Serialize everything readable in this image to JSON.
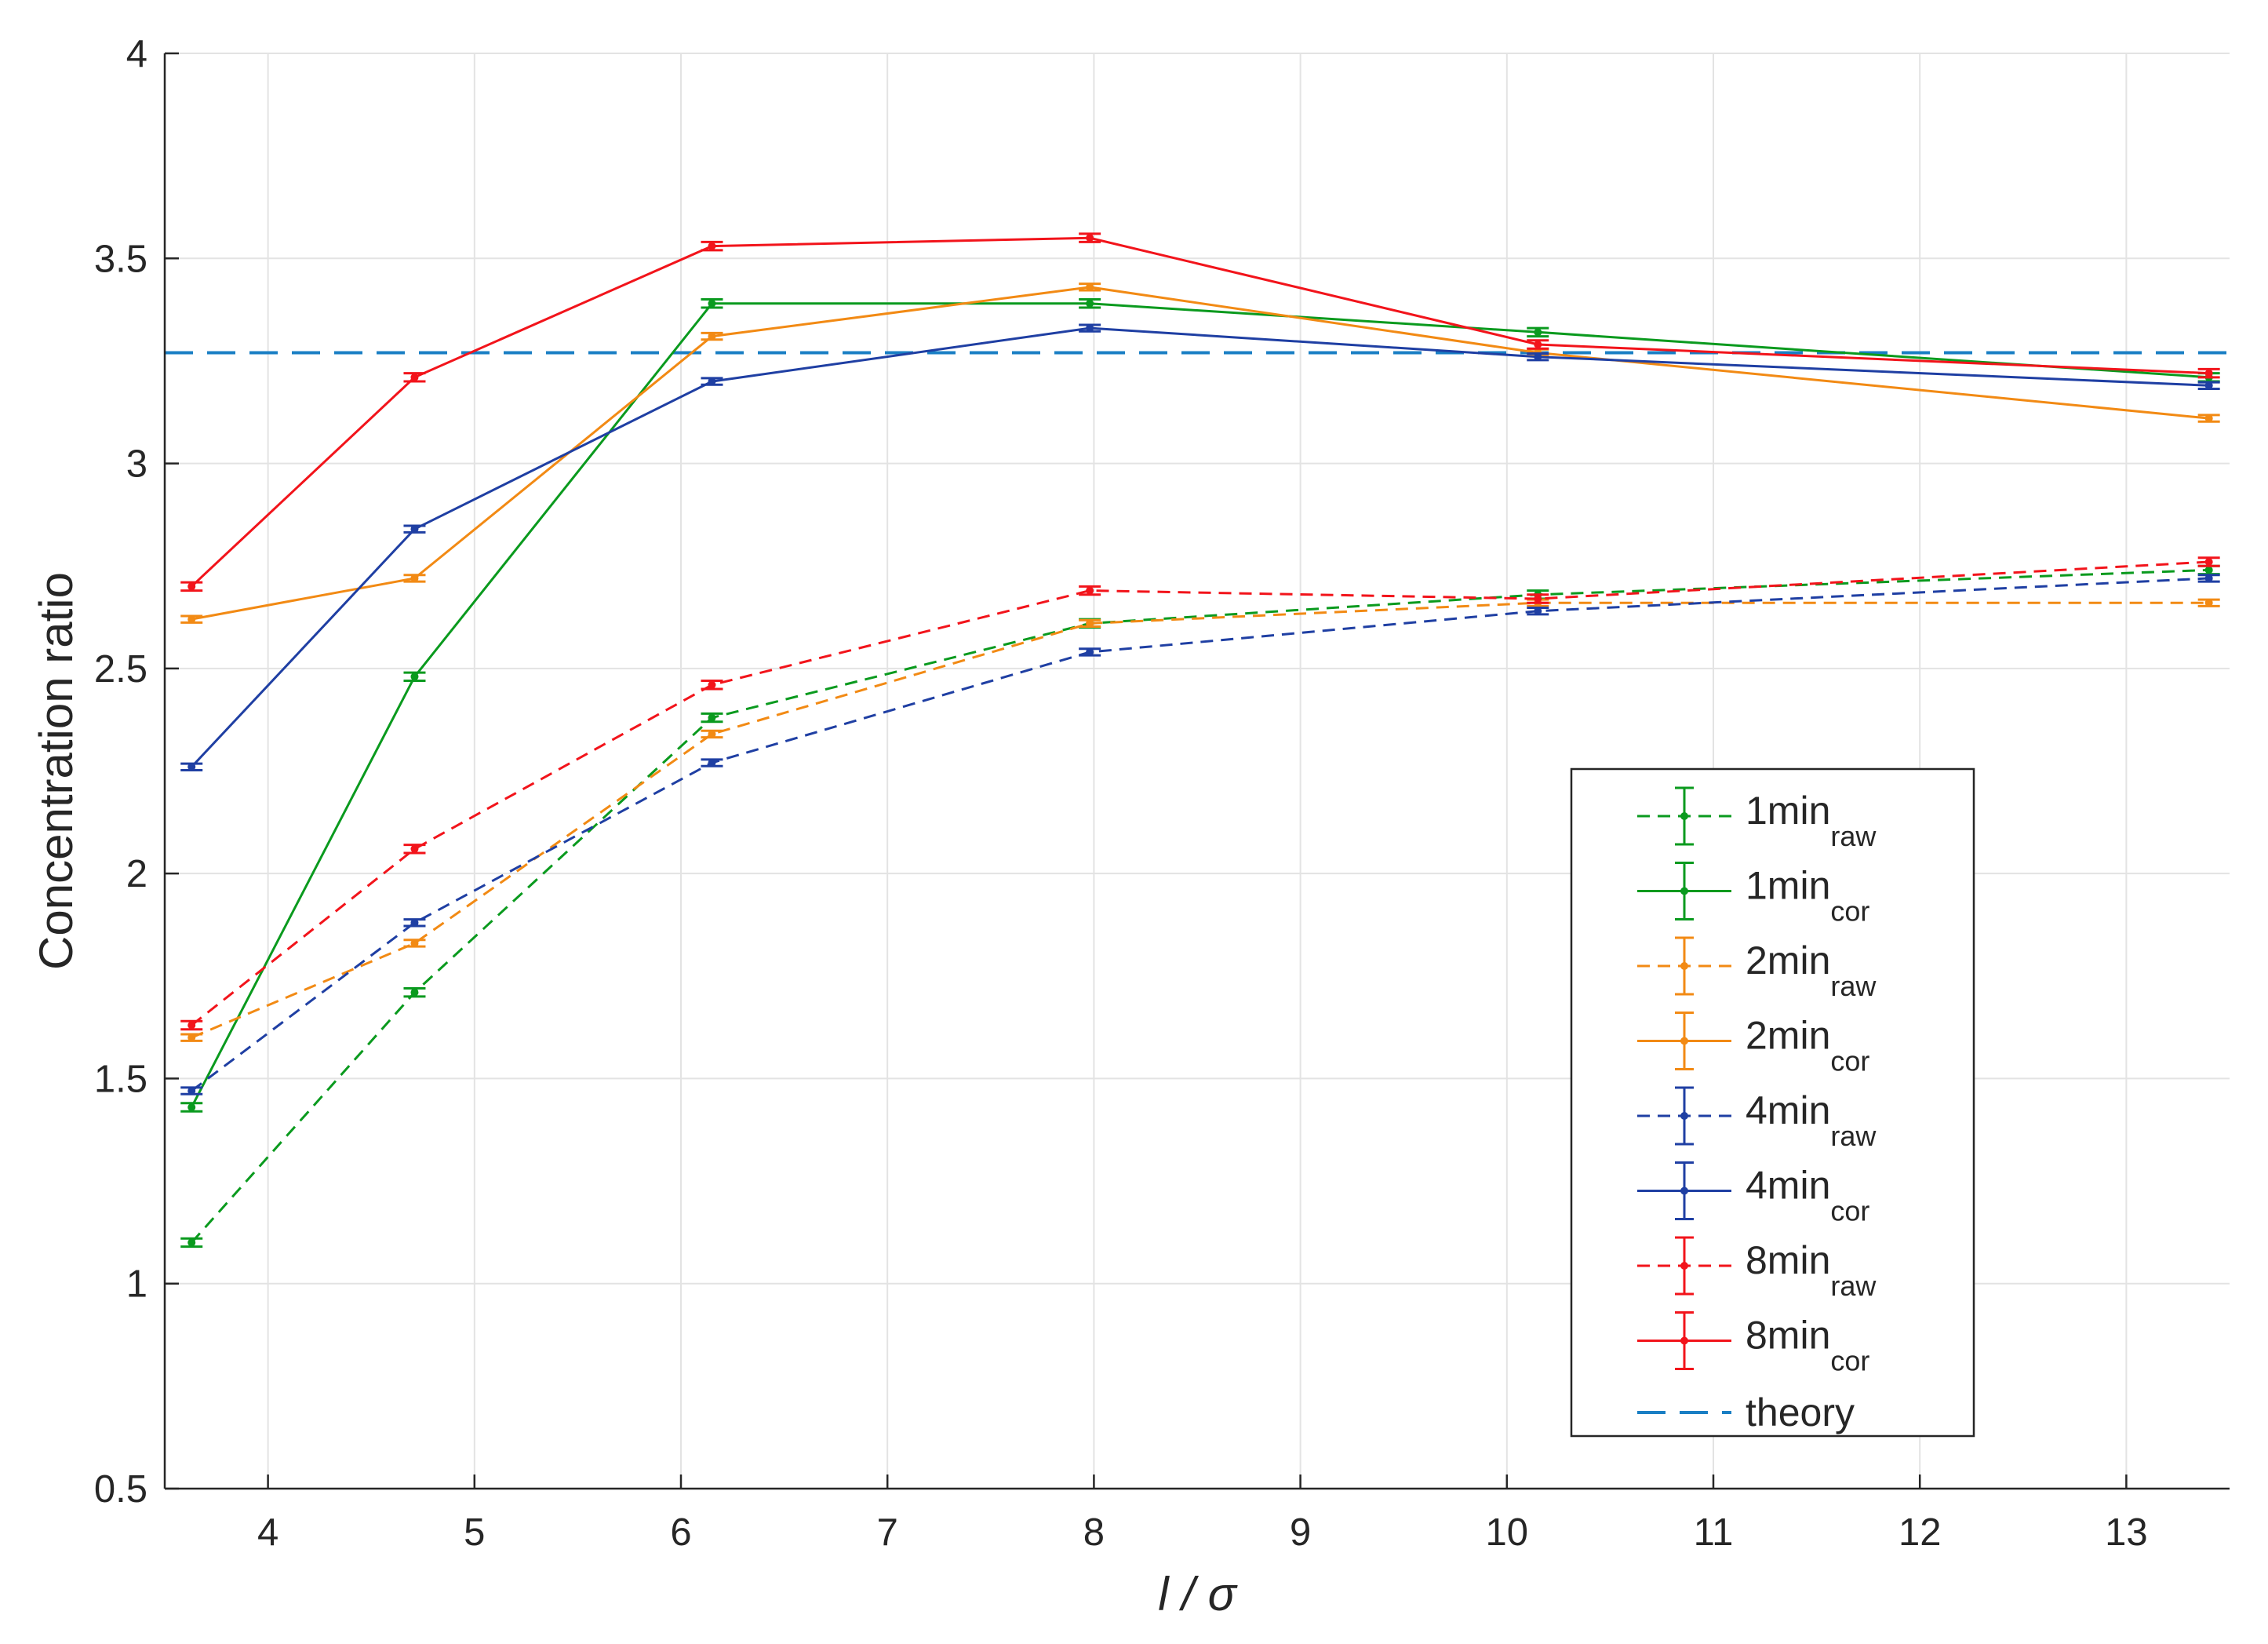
{
  "chart_data": {
    "type": "line",
    "title": "",
    "xlabel": "l / σ",
    "ylabel": "Concentration ratio",
    "xlim": [
      3.5,
      13.5
    ],
    "ylim": [
      0.5,
      4
    ],
    "xticks": [
      4,
      5,
      6,
      7,
      8,
      9,
      10,
      11,
      12,
      13
    ],
    "yticks": [
      0.5,
      1,
      1.5,
      2,
      2.5,
      3,
      3.5,
      4
    ],
    "ytick_labels": [
      "0.5",
      "1",
      "1.5",
      "2",
      "2.5",
      "3",
      "3.5",
      "4"
    ],
    "grid": true,
    "legend_position": "lower-right",
    "x": [
      3.63,
      4.71,
      6.15,
      7.98,
      10.15,
      13.4
    ],
    "series": [
      {
        "name": "1min",
        "sub": "raw",
        "style": "dashed",
        "color": "#0a9a1e",
        "values": [
          1.1,
          1.71,
          2.38,
          2.61,
          2.68,
          2.74
        ],
        "error": 0.01
      },
      {
        "name": "1min",
        "sub": "cor",
        "style": "solid",
        "color": "#0a9a1e",
        "values": [
          1.43,
          2.48,
          3.39,
          3.39,
          3.32,
          3.21
        ],
        "error": 0.01
      },
      {
        "name": "2min",
        "sub": "raw",
        "style": "dashed",
        "color": "#f28a14",
        "values": [
          1.6,
          1.83,
          2.34,
          2.61,
          2.66,
          2.66
        ],
        "error": 0.008
      },
      {
        "name": "2min",
        "sub": "cor",
        "style": "solid",
        "color": "#f28a14",
        "values": [
          2.62,
          2.72,
          3.31,
          3.43,
          3.27,
          3.11
        ],
        "error": 0.008
      },
      {
        "name": "4min",
        "sub": "raw",
        "style": "dashed",
        "color": "#1f3fa3",
        "values": [
          1.47,
          1.88,
          2.27,
          2.54,
          2.64,
          2.72
        ],
        "error": 0.008
      },
      {
        "name": "4min",
        "sub": "cor",
        "style": "solid",
        "color": "#1f3fa3",
        "values": [
          2.26,
          2.84,
          3.2,
          3.33,
          3.26,
          3.19
        ],
        "error": 0.008
      },
      {
        "name": "8min",
        "sub": "raw",
        "style": "dashed",
        "color": "#f2141b",
        "values": [
          1.63,
          2.06,
          2.46,
          2.69,
          2.67,
          2.76
        ],
        "error": 0.01
      },
      {
        "name": "8min",
        "sub": "cor",
        "style": "solid",
        "color": "#f2141b",
        "values": [
          2.7,
          3.21,
          3.53,
          3.55,
          3.29,
          3.22
        ],
        "error": 0.01
      }
    ],
    "reference_line": {
      "name": "theory",
      "y": 3.27,
      "style": "long-dash",
      "color": "#1a7fc4"
    }
  }
}
